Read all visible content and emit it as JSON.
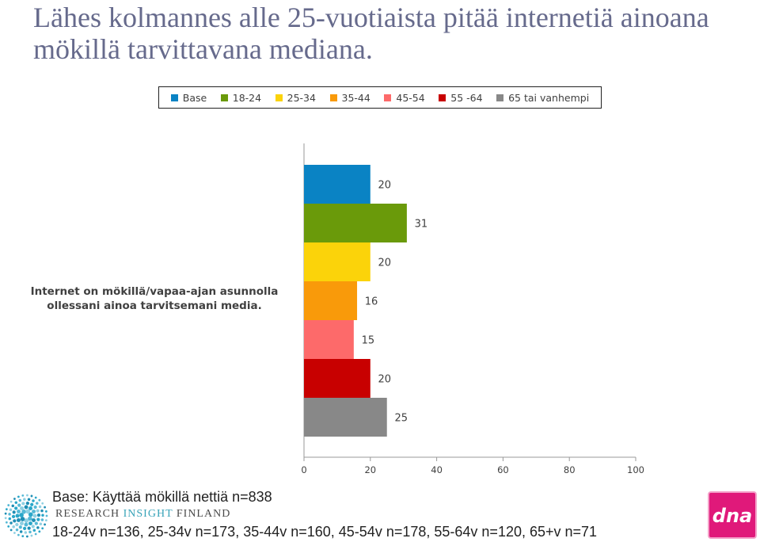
{
  "title": "Lähes kolmannes alle 25-vuotiaista pitää internetiä ainoana mökillä tarvittavana mediana.",
  "chart_data": {
    "type": "bar",
    "orientation": "horizontal",
    "category": "Internet on mökillä/vapaa-ajan asunnolla ollessani ainoa tarvitsemani media.",
    "series": [
      {
        "name": "Base",
        "value": 20,
        "color": "#0a83c4"
      },
      {
        "name": "18-24",
        "value": 31,
        "color": "#6a9a0a"
      },
      {
        "name": "25-34",
        "value": 20,
        "color": "#fbd30a"
      },
      {
        "name": "35-44",
        "value": 16,
        "color": "#f99a0a"
      },
      {
        "name": "45-54",
        "value": 15,
        "color": "#fd6a6a"
      },
      {
        "name": "55 -64",
        "value": 20,
        "color": "#c80000"
      },
      {
        "name": "65 tai vanhempi",
        "value": 25,
        "color": "#888888"
      }
    ],
    "xlim": [
      0,
      100
    ],
    "xticks": [
      0,
      20,
      40,
      60,
      80,
      100
    ],
    "legend_position": "top",
    "grid": false
  },
  "footer": {
    "base_note": "Base: Käyttää mökillä nettiä n=838",
    "sample_sizes": "18-24v n=136, 25-34v n=173, 35-44v n=160, 45-54v n=178, 55-64v n=120, 65+v n=71"
  },
  "logo": {
    "name_main": "RESEARCH",
    "name_accent": "INSIGHT",
    "name_end": "FINLAND",
    "icon": "dot-globe-icon",
    "dna": "dna"
  }
}
